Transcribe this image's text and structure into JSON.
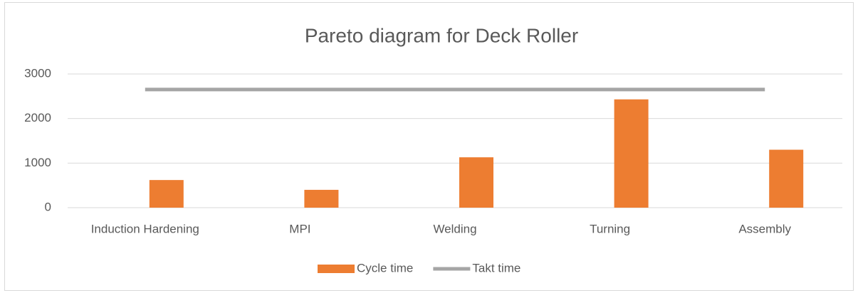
{
  "chart_data": {
    "type": "bar_line",
    "title": "Pareto diagram for Deck Roller",
    "categories": [
      "Induction Hardening",
      "MPI",
      "Welding",
      "Turning",
      "Assembly"
    ],
    "series": [
      {
        "name": "Cycle time",
        "color": "#ed7d31",
        "type": "bar",
        "values": [
          620,
          400,
          1130,
          2430,
          1300
        ]
      },
      {
        "name": "Takt time",
        "color": "#a5a5a5",
        "type": "line",
        "values": [
          2650,
          2650,
          2650,
          2650,
          2650
        ]
      }
    ],
    "ylim": [
      0,
      3000
    ],
    "yticks": [
      0,
      1000,
      2000,
      3000
    ],
    "grid": true,
    "legend": "bottom"
  }
}
